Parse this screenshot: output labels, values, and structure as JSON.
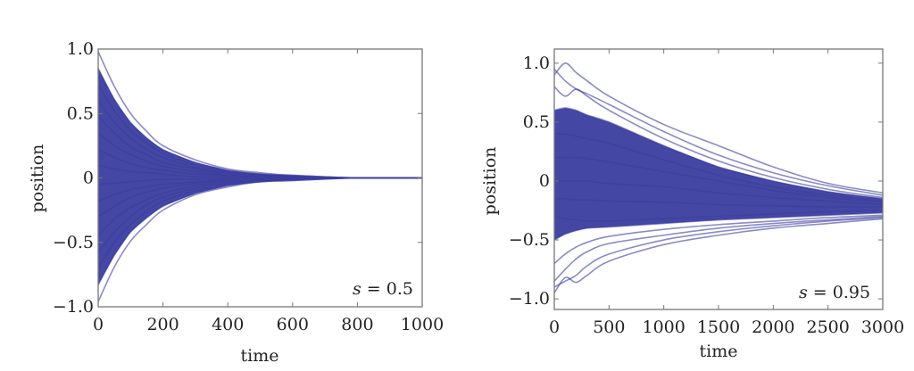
{
  "colors": {
    "line": "#3a3d9e",
    "frame": "#777777"
  },
  "chart_data": [
    {
      "type": "line",
      "xlabel": "time",
      "ylabel": "position",
      "annotation": {
        "var": "s",
        "eq": " = 0.5"
      },
      "xlim": [
        0,
        1000
      ],
      "ylim": [
        -1.0,
        1.0
      ],
      "xticks": [
        0,
        200,
        400,
        600,
        800,
        1000
      ],
      "xtick_labels": [
        "0",
        "200",
        "400",
        "600",
        "800",
        "1000"
      ],
      "yticks": [
        1.0,
        0.5,
        0,
        -0.5,
        -1.0
      ],
      "ytick_labels": [
        "1.0",
        "0.5",
        "0",
        "−0.5",
        "−1.0"
      ],
      "grid": false,
      "x": [
        0,
        50,
        100,
        150,
        200,
        300,
        400,
        500,
        600,
        800,
        1000
      ],
      "series": [
        {
          "values": [
            0.98,
            0.71,
            0.5,
            0.36,
            0.25,
            0.14,
            0.07,
            0.04,
            0.02,
            0,
            0
          ]
        },
        {
          "values": [
            0.85,
            0.61,
            0.43,
            0.31,
            0.22,
            0.12,
            0.06,
            0.03,
            0.02,
            0,
            0
          ]
        },
        {
          "values": [
            0.72,
            0.52,
            0.37,
            0.27,
            0.19,
            0.1,
            0.05,
            0.03,
            0.01,
            0,
            0
          ]
        },
        {
          "values": [
            0.6,
            0.43,
            0.31,
            0.22,
            0.16,
            0.08,
            0.04,
            0.02,
            0.01,
            0,
            0
          ]
        },
        {
          "values": [
            0.48,
            0.35,
            0.24,
            0.18,
            0.12,
            0.07,
            0.03,
            0.02,
            0.01,
            0,
            0
          ]
        },
        {
          "values": [
            0.35,
            0.25,
            0.18,
            0.13,
            0.09,
            0.05,
            0.02,
            0.01,
            0.01,
            0,
            0
          ]
        },
        {
          "values": [
            0.22,
            0.16,
            0.11,
            0.08,
            0.06,
            0.03,
            0.02,
            0.01,
            0,
            0,
            0
          ]
        },
        {
          "values": [
            0.1,
            0.07,
            0.05,
            0.04,
            0.03,
            0.01,
            0.01,
            0,
            0,
            0,
            0
          ]
        },
        {
          "values": [
            -0.05,
            -0.04,
            -0.03,
            -0.02,
            -0.01,
            -0.01,
            0,
            0,
            0,
            0,
            0
          ]
        },
        {
          "values": [
            -0.18,
            -0.13,
            -0.09,
            -0.07,
            -0.05,
            -0.03,
            -0.01,
            -0.01,
            0,
            0,
            0
          ]
        },
        {
          "values": [
            -0.3,
            -0.22,
            -0.15,
            -0.11,
            -0.08,
            -0.04,
            -0.02,
            -0.01,
            -0.01,
            0,
            0
          ]
        },
        {
          "values": [
            -0.45,
            -0.32,
            -0.23,
            -0.17,
            -0.12,
            -0.06,
            -0.03,
            -0.02,
            -0.01,
            0,
            0
          ]
        },
        {
          "values": [
            -0.58,
            -0.42,
            -0.3,
            -0.21,
            -0.15,
            -0.08,
            -0.04,
            -0.02,
            -0.01,
            0,
            0
          ]
        },
        {
          "values": [
            -0.7,
            -0.5,
            -0.36,
            -0.26,
            -0.18,
            -0.1,
            -0.05,
            -0.03,
            -0.01,
            0,
            0
          ]
        },
        {
          "values": [
            -0.83,
            -0.6,
            -0.42,
            -0.31,
            -0.22,
            -0.12,
            -0.06,
            -0.03,
            -0.02,
            0,
            0
          ]
        },
        {
          "values": [
            -0.96,
            -0.69,
            -0.49,
            -0.36,
            -0.25,
            -0.13,
            -0.07,
            -0.03,
            -0.02,
            0,
            0
          ]
        }
      ]
    },
    {
      "type": "line",
      "xlabel": "time",
      "ylabel": "position",
      "annotation": {
        "var": "s",
        "eq": " = 0.95"
      },
      "xlim": [
        0,
        3000
      ],
      "ylim": [
        -1.09,
        1.12
      ],
      "xticks": [
        0,
        500,
        1000,
        1500,
        2000,
        2500,
        3000
      ],
      "xtick_labels": [
        "0",
        "500",
        "1000",
        "1500",
        "2000",
        "2500",
        "3000"
      ],
      "yticks": [
        1.0,
        0.5,
        0,
        -0.5,
        -1.0
      ],
      "ytick_labels": [
        "1.0",
        "0.5",
        "0",
        "−0.5",
        "−1.0"
      ],
      "grid": false,
      "x": [
        0,
        100,
        200,
        300,
        500,
        1000,
        1500,
        2000,
        2500,
        3000
      ],
      "series": [
        {
          "values": [
            0.9,
            1.0,
            0.92,
            0.85,
            0.72,
            0.48,
            0.3,
            0.12,
            -0.02,
            -0.1
          ]
        },
        {
          "values": [
            0.95,
            0.85,
            0.78,
            0.74,
            0.65,
            0.42,
            0.22,
            0.07,
            -0.04,
            -0.12
          ]
        },
        {
          "values": [
            0.8,
            0.72,
            0.78,
            0.72,
            0.6,
            0.36,
            0.17,
            0.03,
            -0.07,
            -0.14
          ]
        },
        {
          "values": [
            0.6,
            0.62,
            0.6,
            0.56,
            0.5,
            0.3,
            0.12,
            0,
            -0.09,
            -0.15
          ]
        },
        {
          "values": [
            0.4,
            0.4,
            0.38,
            0.36,
            0.32,
            0.18,
            0.05,
            -0.05,
            -0.12,
            -0.17
          ]
        },
        {
          "values": [
            0.2,
            0.2,
            0.2,
            0.19,
            0.16,
            0.08,
            0,
            -0.08,
            -0.14,
            -0.18
          ]
        },
        {
          "values": [
            0,
            0,
            0,
            0,
            -0.02,
            -0.05,
            -0.1,
            -0.14,
            -0.17,
            -0.2
          ]
        },
        {
          "values": [
            -0.15,
            -0.15,
            -0.16,
            -0.16,
            -0.17,
            -0.18,
            -0.2,
            -0.21,
            -0.22,
            -0.22
          ]
        },
        {
          "values": [
            -0.3,
            -0.32,
            -0.33,
            -0.34,
            -0.34,
            -0.32,
            -0.3,
            -0.28,
            -0.26,
            -0.25
          ]
        },
        {
          "values": [
            -0.5,
            -0.45,
            -0.42,
            -0.4,
            -0.39,
            -0.36,
            -0.33,
            -0.31,
            -0.29,
            -0.27
          ]
        },
        {
          "values": [
            -0.7,
            -0.62,
            -0.56,
            -0.52,
            -0.47,
            -0.41,
            -0.37,
            -0.34,
            -0.31,
            -0.29
          ]
        },
        {
          "values": [
            -0.85,
            -0.75,
            -0.66,
            -0.6,
            -0.53,
            -0.46,
            -0.4,
            -0.36,
            -0.33,
            -0.3
          ]
        },
        {
          "values": [
            -0.9,
            -0.85,
            -0.8,
            -0.72,
            -0.62,
            -0.5,
            -0.43,
            -0.38,
            -0.34,
            -0.31
          ]
        },
        {
          "values": [
            -0.95,
            -0.82,
            -0.86,
            -0.8,
            -0.68,
            -0.54,
            -0.46,
            -0.4,
            -0.36,
            -0.32
          ]
        }
      ]
    }
  ]
}
